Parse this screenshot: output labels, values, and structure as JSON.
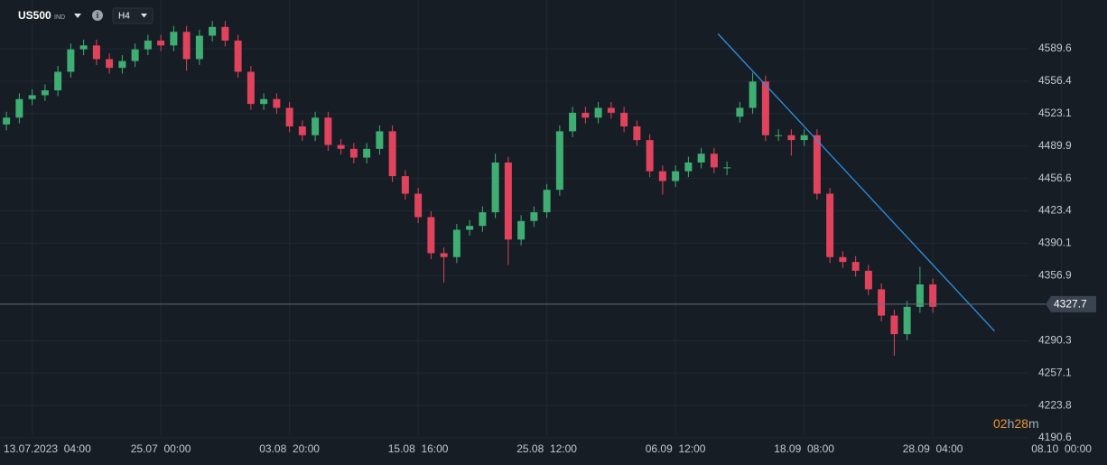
{
  "toolbar": {
    "symbol": "US500",
    "market": "IND",
    "timeframe": "H4",
    "info": "i"
  },
  "countdown": [
    "02",
    "h",
    "28",
    "m"
  ],
  "chart_data": {
    "type": "candlestick",
    "categories": [
      null,
      null,
      "13.07.2023  04:00",
      null,
      null,
      null,
      null,
      null,
      null,
      null,
      null,
      null,
      "25.07  00:00",
      null,
      null,
      null,
      null,
      null,
      null,
      null,
      null,
      null,
      "03.08  20:00",
      null,
      null,
      null,
      null,
      null,
      null,
      null,
      null,
      null,
      "15.08  16:00",
      null,
      null,
      null,
      null,
      null,
      null,
      null,
      null,
      null,
      "25.08  12:00",
      null,
      null,
      null,
      null,
      null,
      null,
      null,
      null,
      null,
      "06.09  12:00",
      null,
      null,
      null,
      null,
      null,
      null,
      null,
      null,
      null,
      "18.09  08:00",
      null,
      null,
      null,
      null,
      null,
      null,
      null,
      null,
      null,
      "28.09  04:00",
      null,
      null,
      null,
      null,
      null,
      null,
      null,
      null,
      null,
      "08.10  00:00",
      null
    ],
    "series": [
      {
        "up_color": "#3fae72",
        "down_color": "#e0435b",
        "open": [
          4512,
          4519,
          4538,
          4542,
          4547,
          4566,
          4589,
          4593,
          4579,
          4570,
          4577,
          4589,
          4598,
          4593,
          4607,
          4579,
          4603,
          4612,
          4598,
          4566,
          4533,
          4538,
          4529,
          4510,
          4501,
          4519,
          4491,
          4487,
          4478,
          4487,
          4505,
          4459,
          4441,
          4417,
          4380,
          4376,
          4404,
          4408,
          4422,
          4473,
          4394,
          4413,
          4422,
          4445,
          4505,
          4524,
          4519,
          4529,
          4524,
          4510,
          4496,
          4464,
          4454,
          4464,
          4473,
          4482,
          4468,
          4520,
          4529,
          4556,
          4501,
          4501,
          4496,
          4501,
          4441,
          4376,
          4371,
          4362,
          4343,
          4316,
          4297,
          4325,
          4348,
          null,
          null,
          null,
          null,
          null,
          null,
          null,
          null,
          null,
          null,
          null
        ],
        "high": [
          4525,
          4544,
          4548,
          4553,
          4572,
          4595,
          4599,
          4599,
          4585,
          4583,
          4595,
          4604,
          4604,
          4613,
          4613,
          4609,
          4618,
          4618,
          4604,
          4572,
          4544,
          4544,
          4535,
          4516,
          4525,
          4525,
          4497,
          4493,
          4493,
          4511,
          4511,
          4465,
          4447,
          4423,
          4386,
          4410,
          4414,
          4428,
          4482,
          4479,
          4419,
          4428,
          4451,
          4511,
          4530,
          4530,
          4535,
          4535,
          4530,
          4516,
          4502,
          4470,
          4470,
          4479,
          4488,
          4488,
          4474,
          4535,
          4565,
          4562,
          4507,
          4507,
          4507,
          4507,
          4447,
          4382,
          4377,
          4368,
          4349,
          4322,
          4331,
          4366,
          4354,
          null,
          null,
          null,
          null,
          null,
          null,
          null,
          null,
          null,
          null,
          null
        ],
        "low": [
          4506,
          4513,
          4532,
          4536,
          4541,
          4560,
          4583,
          4573,
          4564,
          4564,
          4571,
          4583,
          4587,
          4587,
          4567,
          4573,
          4597,
          4592,
          4560,
          4527,
          4527,
          4523,
          4504,
          4495,
          4495,
          4485,
          4481,
          4472,
          4472,
          4481,
          4453,
          4435,
          4411,
          4374,
          4350,
          4370,
          4398,
          4402,
          4416,
          4368,
          4388,
          4407,
          4416,
          4439,
          4499,
          4513,
          4513,
          4518,
          4504,
          4490,
          4458,
          4440,
          4448,
          4458,
          4467,
          4462,
          4460,
          4514,
          4523,
          4495,
          4495,
          4480,
          4490,
          4435,
          4370,
          4365,
          4356,
          4337,
          4310,
          4275,
          4291,
          4319,
          4319,
          null,
          null,
          null,
          null,
          null,
          null,
          null,
          null,
          null,
          null,
          null
        ],
        "close": [
          4519,
          4538,
          4542,
          4547,
          4566,
          4589,
          4593,
          4579,
          4570,
          4577,
          4589,
          4598,
          4593,
          4607,
          4579,
          4603,
          4612,
          4598,
          4566,
          4533,
          4538,
          4529,
          4510,
          4501,
          4519,
          4491,
          4487,
          4478,
          4487,
          4505,
          4459,
          4441,
          4417,
          4380,
          4376,
          4404,
          4408,
          4422,
          4473,
          4394,
          4413,
          4422,
          4445,
          4505,
          4524,
          4519,
          4529,
          4524,
          4510,
          4496,
          4464,
          4454,
          4464,
          4473,
          4482,
          4468,
          4468,
          4529,
          4556,
          4501,
          4501,
          4496,
          4501,
          4441,
          4376,
          4371,
          4362,
          4343,
          4316,
          4297,
          4325,
          4348,
          4325,
          null,
          null,
          null,
          null,
          null,
          null,
          null,
          null,
          null,
          null,
          null
        ]
      }
    ],
    "ylim": [
      4186,
      4639.6
    ],
    "yticks": [
      4589.6,
      4556.4,
      4523.1,
      4489.9,
      4456.6,
      4423.4,
      4390.1,
      4356.9,
      4290.3,
      4257.1,
      4223.8,
      4190.6
    ],
    "grid": true,
    "last_price": 4327.7,
    "trendline": {
      "x": [
        55.3,
        76.8
      ],
      "y": [
        4605,
        4300
      ],
      "color": "#2f8fe0"
    }
  }
}
